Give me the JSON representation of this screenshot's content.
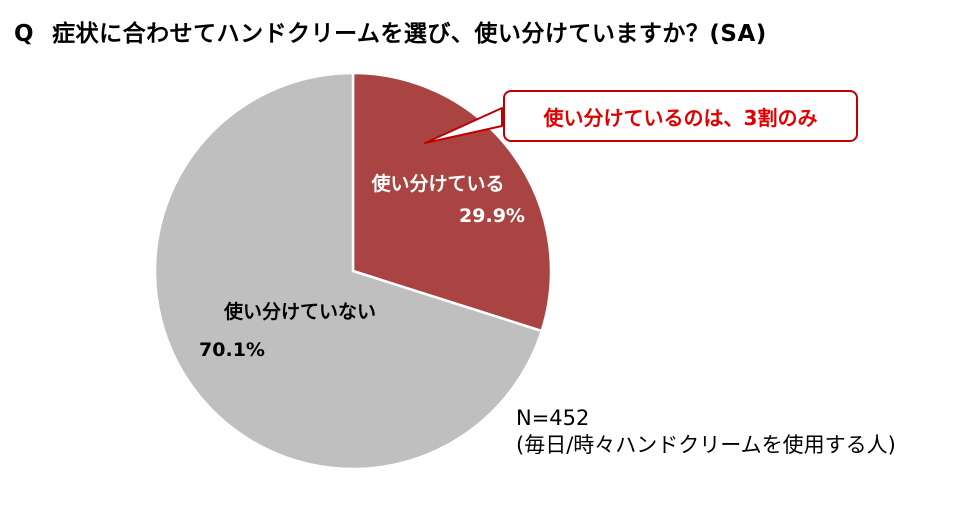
{
  "title": {
    "prefix": "Q",
    "text": "症状に合わせてハンドクリームを選び、使い分けていますか？(SA)"
  },
  "chart_data": {
    "type": "pie",
    "slices": [
      {
        "label": "使い分けている",
        "value": 29.9,
        "value_label": "29.9%",
        "color": "#a94442"
      },
      {
        "label": "使い分けていない",
        "value": 70.1,
        "value_label": "70.1%",
        "color": "#bfbfbf"
      }
    ],
    "start": "top, clockwise"
  },
  "callout": {
    "text": "使い分けているのは、3割のみ",
    "border_color": "#c00000",
    "text_color": "#e00000"
  },
  "note": {
    "sample": "N=452",
    "description": "(毎日/時々ハンドクリームを使用する人)"
  }
}
